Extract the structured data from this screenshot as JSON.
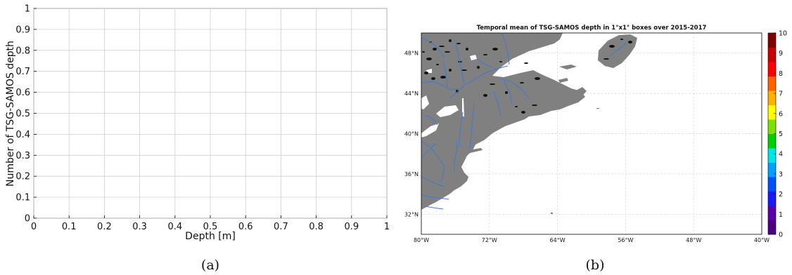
{
  "chart_data": [
    {
      "type": "line",
      "panel": "(a)",
      "title": "",
      "xlabel": "Depth [m]",
      "ylabel": "Number of TSG-SAMOS depth",
      "xlim": [
        0,
        1
      ],
      "ylim": [
        0,
        1
      ],
      "xticks": [
        "0",
        "0.1",
        "0.2",
        "0.3",
        "0.4",
        "0.5",
        "0.6",
        "0.7",
        "0.8",
        "0.9",
        "1"
      ],
      "yticks": [
        "0",
        "0.1",
        "0.2",
        "0.3",
        "0.4",
        "0.5",
        "0.6",
        "0.7",
        "0.8",
        "0.9",
        "1"
      ],
      "grid": true,
      "series": []
    },
    {
      "type": "heatmap",
      "panel": "(b)",
      "title": "Temporal mean of TSG-SAMOS depth in 1°x1° boxes over 2015-2017",
      "xlim": [
        -80,
        -40
      ],
      "ylim": [
        30,
        50
      ],
      "xticks": [
        "80°W",
        "72°W",
        "64°W",
        "56°W",
        "48°W",
        "40°W"
      ],
      "yticks": [
        "48°N",
        "44°N",
        "40°N",
        "36°N",
        "32°N"
      ],
      "grid": true,
      "colorbar": {
        "min": 0,
        "max": 10,
        "ticks": [
          "0",
          "1",
          "2",
          "3",
          "4",
          "5",
          "6",
          "7",
          "8",
          "9",
          "10"
        ]
      },
      "values": []
    }
  ],
  "captions": {
    "a": "(a)",
    "b": "(b)"
  },
  "colors": {
    "land": "#808080",
    "river": "#3a7bd5",
    "grid": "#d8d8d8",
    "lake": "#ffffff"
  },
  "colormap": [
    "#4b0082",
    "#5b00a8",
    "#1a1aff",
    "#0050ff",
    "#00a0ff",
    "#00e6e6",
    "#00d000",
    "#7ee000",
    "#ffff00",
    "#ffb000",
    "#ff6000",
    "#ff0000",
    "#c80000",
    "#800000"
  ]
}
